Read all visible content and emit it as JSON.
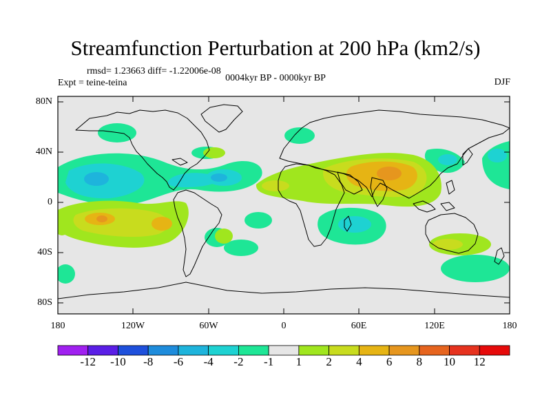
{
  "title": "Streamfunction Perturbation at 200 hPa (km2/s)",
  "stats": "rmsd= 1.23663 diff= -1.22006e-08",
  "experiment": "Expt = teine-teina",
  "period": "0004kyr BP - 0000kyr BP",
  "season": "DJF",
  "lat_labels": [
    "80N",
    "40N",
    "0",
    "40S",
    "80S"
  ],
  "lon_labels": [
    "180",
    "120W",
    "60W",
    "0",
    "60E",
    "120E",
    "180"
  ],
  "colorbar": {
    "labels": [
      "-12",
      "-10",
      "-8",
      "-6",
      "-4",
      "-2",
      "-1",
      "1",
      "2",
      "4",
      "6",
      "8",
      "10",
      "12"
    ],
    "colors": [
      "#a020f0",
      "#5a1ee6",
      "#1e50dc",
      "#1e8cdc",
      "#1eb4dc",
      "#1ed2d2",
      "#1ee696",
      "#e6e6e6",
      "#a0e61e",
      "#c8dc1e",
      "#e6b414",
      "#e6961e",
      "#e6641e",
      "#e6321e",
      "#e60a0a"
    ]
  },
  "colors": {
    "background": "#e6e6e6",
    "coast": "#000000"
  }
}
